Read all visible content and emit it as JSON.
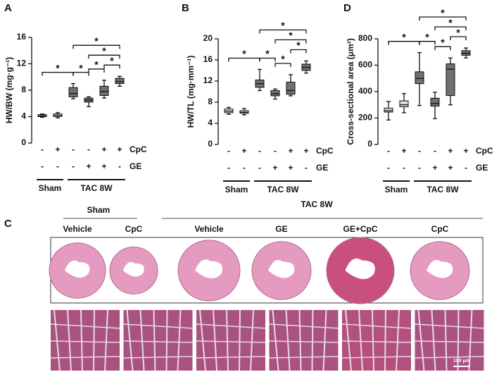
{
  "chart_data": [
    {
      "panel": "A",
      "type": "box",
      "y_label": "HW/BW (mg·g⁻¹)",
      "ylim": [
        0,
        16
      ],
      "yticks": [
        0,
        4,
        8,
        12,
        16
      ],
      "boxes": [
        {
          "min": 3.9,
          "q1": 4.0,
          "median": 4.15,
          "q3": 4.3,
          "max": 4.4,
          "color": "#dcdcdc"
        },
        {
          "min": 3.8,
          "q1": 4.0,
          "median": 4.2,
          "q3": 4.4,
          "max": 4.6,
          "color": "#dcdcdc"
        },
        {
          "min": 6.7,
          "q1": 7.0,
          "median": 7.5,
          "q3": 8.4,
          "max": 9.0,
          "color": "#707070"
        },
        {
          "min": 5.5,
          "q1": 6.2,
          "median": 6.5,
          "q3": 6.8,
          "max": 7.0,
          "color": "#707070"
        },
        {
          "min": 6.8,
          "q1": 7.2,
          "median": 7.8,
          "q3": 8.6,
          "max": 9.5,
          "color": "#707070"
        },
        {
          "min": 8.6,
          "q1": 9.0,
          "median": 9.3,
          "q3": 9.8,
          "max": 10.1,
          "color": "#707070"
        }
      ],
      "rows": [
        {
          "name": "CpC",
          "values": [
            "-",
            "+",
            "-",
            "-",
            "+",
            "+"
          ]
        },
        {
          "name": "GE",
          "values": [
            "-",
            "-",
            "-",
            "+",
            "+",
            "-"
          ]
        }
      ],
      "groups": [
        {
          "label": "Sham",
          "from": 0,
          "to": 1
        },
        {
          "label": "TAC 8W",
          "from": 2,
          "to": 5
        }
      ],
      "significance": [
        {
          "from": 0,
          "to": 2,
          "label": "*"
        },
        {
          "from": 2,
          "to": 3,
          "label": "*"
        },
        {
          "from": 3,
          "to": 4,
          "label": "*"
        },
        {
          "from": 4,
          "to": 5,
          "label": "*"
        },
        {
          "from": 3,
          "to": 5,
          "label": "*"
        },
        {
          "from": 2,
          "to": 5,
          "label": "*"
        }
      ]
    },
    {
      "panel": "B",
      "type": "box",
      "y_label": "HW/TL (mg·mm⁻¹)",
      "ylim": [
        0,
        20
      ],
      "yticks": [
        0,
        4,
        8,
        12,
        16,
        20
      ],
      "boxes": [
        {
          "min": 5.7,
          "q1": 6.0,
          "median": 6.3,
          "q3": 6.7,
          "max": 7.0,
          "color": "#dcdcdc"
        },
        {
          "min": 5.6,
          "q1": 5.9,
          "median": 6.1,
          "q3": 6.4,
          "max": 6.8,
          "color": "#dcdcdc"
        },
        {
          "min": 10.2,
          "q1": 10.8,
          "median": 11.5,
          "q3": 12.2,
          "max": 14.2,
          "color": "#707070"
        },
        {
          "min": 8.6,
          "q1": 9.2,
          "median": 9.6,
          "q3": 10.2,
          "max": 10.5,
          "color": "#707070"
        },
        {
          "min": 9.2,
          "q1": 9.5,
          "median": 10.2,
          "q3": 11.8,
          "max": 13.2,
          "color": "#707070"
        },
        {
          "min": 13.5,
          "q1": 14.0,
          "median": 14.6,
          "q3": 15.2,
          "max": 15.8,
          "color": "#707070"
        }
      ],
      "rows": [
        {
          "name": "CpC",
          "values": [
            "-",
            "+",
            "-",
            "-",
            "+",
            "+"
          ]
        },
        {
          "name": "GE",
          "values": [
            "-",
            "-",
            "-",
            "+",
            "+",
            "-"
          ]
        }
      ],
      "groups": [
        {
          "label": "Sham",
          "from": 0,
          "to": 1
        },
        {
          "label": "TAC 8W",
          "from": 2,
          "to": 5
        }
      ],
      "significance": [
        {
          "from": 0,
          "to": 2,
          "label": "*"
        },
        {
          "from": 2,
          "to": 3,
          "label": "*"
        },
        {
          "from": 3,
          "to": 4,
          "label": "*"
        },
        {
          "from": 4,
          "to": 5,
          "label": "*"
        },
        {
          "from": 3,
          "to": 5,
          "label": "*"
        },
        {
          "from": 2,
          "to": 5,
          "label": "*"
        }
      ]
    },
    {
      "panel": "D",
      "type": "box",
      "y_label": "Cross-sectional area (μm²)",
      "ylim": [
        0,
        800
      ],
      "yticks": [
        0,
        200,
        400,
        600,
        800
      ],
      "boxes": [
        {
          "min": 185,
          "q1": 245,
          "median": 255,
          "q3": 275,
          "max": 325,
          "color": "#dcdcdc"
        },
        {
          "min": 240,
          "q1": 285,
          "median": 300,
          "q3": 330,
          "max": 385,
          "color": "#dcdcdc"
        },
        {
          "min": 295,
          "q1": 460,
          "median": 500,
          "q3": 550,
          "max": 695,
          "color": "#707070"
        },
        {
          "min": 195,
          "q1": 290,
          "median": 310,
          "q3": 350,
          "max": 395,
          "color": "#707070"
        },
        {
          "min": 300,
          "q1": 370,
          "median": 570,
          "q3": 610,
          "max": 655,
          "color": "#707070"
        },
        {
          "min": 655,
          "q1": 675,
          "median": 690,
          "q3": 710,
          "max": 730,
          "color": "#707070"
        }
      ],
      "rows": [
        {
          "name": "CpC",
          "values": [
            "-",
            "+",
            "-",
            "-",
            "+",
            "+"
          ]
        },
        {
          "name": "GE",
          "values": [
            "-",
            "-",
            "-",
            "+",
            "+",
            "-"
          ]
        }
      ],
      "groups": [
        {
          "label": "Sham",
          "from": 0,
          "to": 1
        },
        {
          "label": "TAC 8W",
          "from": 2,
          "to": 5
        }
      ],
      "significance": [
        {
          "from": 0,
          "to": 2,
          "label": "*"
        },
        {
          "from": 2,
          "to": 3,
          "label": "*"
        },
        {
          "from": 3,
          "to": 4,
          "label": "*"
        },
        {
          "from": 4,
          "to": 5,
          "label": "*"
        },
        {
          "from": 3,
          "to": 5,
          "label": "*"
        },
        {
          "from": 2,
          "to": 5,
          "label": "*"
        }
      ]
    }
  ],
  "panel_c": {
    "panel": "C",
    "groups": [
      {
        "label": "Sham"
      },
      {
        "label": "TAC 8W"
      }
    ],
    "columns": [
      "Vehicle",
      "CpC",
      "Vehicle",
      "GE",
      "GE+CpC",
      "CpC"
    ],
    "scale_bar": "100 μm"
  }
}
